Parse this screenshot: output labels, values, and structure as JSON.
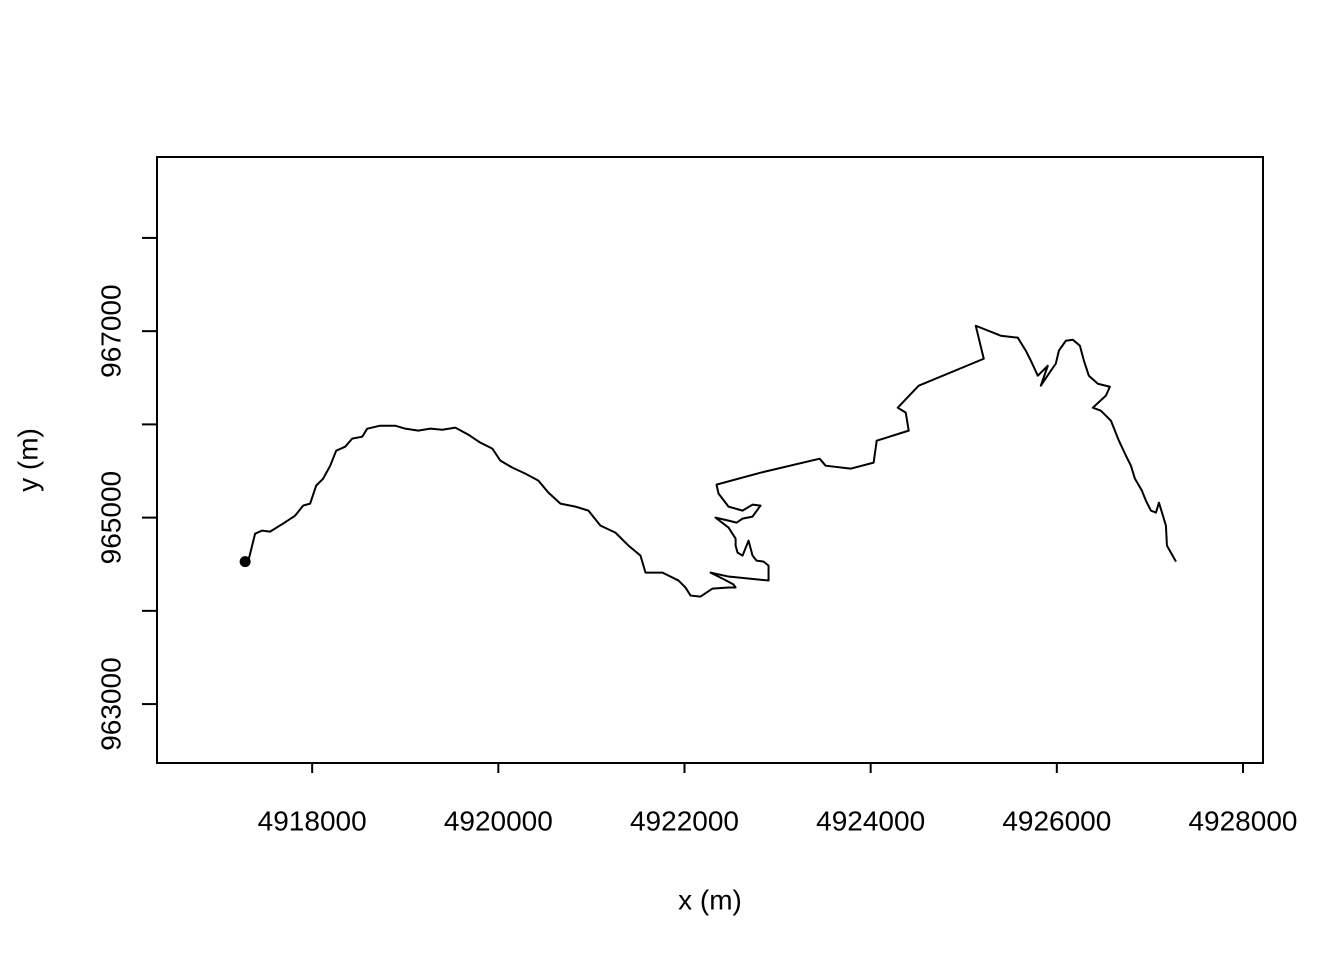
{
  "chart_data": {
    "type": "line",
    "xlabel": "x (m)",
    "ylabel": "y (m)",
    "xlim": [
      4916333,
      4928215
    ],
    "ylim": [
      962368,
      968868
    ],
    "xticks": [
      4918000,
      4920000,
      4922000,
      4924000,
      4926000,
      4928000
    ],
    "yticks": [
      963000,
      965000,
      967000
    ],
    "yticks_unlabeled": [
      964000,
      966000,
      968000
    ],
    "marker_first_point": true,
    "x": [
      4917280,
      4917323,
      4917355,
      4917387,
      4917462,
      4917548,
      4917688,
      4917817,
      4917903,
      4917978,
      4918043,
      4918118,
      4918194,
      4918258,
      4918355,
      4918430,
      4918538,
      4918591,
      4918731,
      4918892,
      4919000,
      4919140,
      4919269,
      4919398,
      4919538,
      4919677,
      4919807,
      4919936,
      4920022,
      4920151,
      4920290,
      4920430,
      4920538,
      4920667,
      4920828,
      4920968,
      4921097,
      4921258,
      4921398,
      4921527,
      4921581,
      4921764,
      4921936,
      4922011,
      4922065,
      4922172,
      4922301,
      4922473,
      4922549,
      4922527,
      4922430,
      4922280,
      4922473,
      4922903,
      4922903,
      4922850,
      4922774,
      4922731,
      4922688,
      4922624,
      4922570,
      4922549,
      4922549,
      4922473,
      4922333,
      4922473,
      4922559,
      4922624,
      4922731,
      4922817,
      4922731,
      4922624,
      4922473,
      4922366,
      4922344,
      4922817,
      4923452,
      4923516,
      4923785,
      4924032,
      4924065,
      4924409,
      4924377,
      4924291,
      4924516,
      4925215,
      4925129,
      4925398,
      4925581,
      4925667,
      4925721,
      4925796,
      4925903,
      4925828,
      4925936,
      4925989,
      4926022,
      4926097,
      4926172,
      4926248,
      4926291,
      4926344,
      4926441,
      4926570,
      4926527,
      4926387,
      4926473,
      4926581,
      4926667,
      4926742,
      4926796,
      4926839,
      4926914,
      4926957,
      4927011,
      4927065,
      4927097,
      4927140,
      4927172,
      4927183,
      4927280
    ],
    "series": [
      {
        "color": "#000000",
        "values": [
          964528,
          964571,
          964700,
          964828,
          964861,
          964850,
          964936,
          965021,
          965129,
          965150,
          965343,
          965418,
          965557,
          965718,
          965761,
          965847,
          965868,
          965954,
          965986,
          965986,
          965954,
          965933,
          965954,
          965943,
          965965,
          965890,
          965804,
          965740,
          965611,
          965536,
          965472,
          965397,
          965268,
          965150,
          965118,
          965075,
          964914,
          964839,
          964700,
          964593,
          964410,
          964410,
          964325,
          964250,
          964164,
          964153,
          964239,
          964250,
          964250,
          964282,
          964335,
          964410,
          964368,
          964325,
          964485,
          964528,
          964539,
          964593,
          964753,
          964593,
          964625,
          964700,
          964775,
          964893,
          965000,
          964968,
          964946,
          964989,
          965011,
          965129,
          965139,
          965075,
          965118,
          965257,
          965354,
          965482,
          965632,
          965557,
          965525,
          965590,
          965825,
          965933,
          966126,
          966179,
          966415,
          966704,
          967058,
          966951,
          966930,
          966790,
          966683,
          966522,
          966629,
          966415,
          966576,
          966651,
          966790,
          966897,
          966908,
          966844,
          966683,
          966522,
          966436,
          966404,
          966308,
          966179,
          966147,
          966040,
          965825,
          965665,
          965557,
          965418,
          965289,
          965182,
          965075,
          965054,
          965161,
          965021,
          964914,
          964700,
          964528
        ]
      }
    ]
  }
}
